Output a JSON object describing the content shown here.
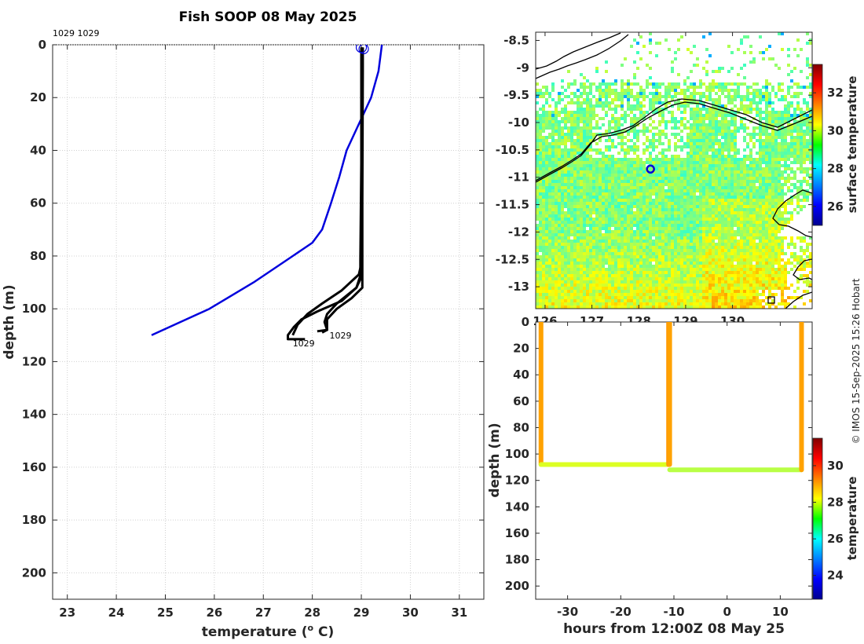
{
  "page": {
    "title": "Fish SOOP 08 May 2025",
    "credit": "© IMOS 15-Sep-2025 15:26 Hobart"
  },
  "chart_data": [
    {
      "type": "line",
      "name": "profile",
      "xlabel": "temperature (° C)",
      "xlabel_main": "temperature (",
      "xlabel_sup": "o",
      "xlabel_end": " C)",
      "ylabel": "depth (m)",
      "xlim": [
        22.7,
        31.5
      ],
      "ylim": [
        0,
        210
      ],
      "y_reversed": true,
      "grid": true,
      "xticks": [
        "23",
        "24",
        "25",
        "26",
        "27",
        "28",
        "29",
        "30",
        "31"
      ],
      "yticks": [
        "0",
        "20",
        "40",
        "60",
        "80",
        "100",
        "120",
        "140",
        "160",
        "180",
        "200"
      ],
      "top_annotation": "1029 1029",
      "annotations": [
        {
          "text": "1029",
          "x": 28.35,
          "y": 110
        },
        {
          "text": "1029",
          "x": 27.6,
          "y": 113
        }
      ],
      "series": [
        {
          "color": "#0000dd",
          "x": [
            29.42,
            29.35,
            29.2,
            28.95,
            28.7,
            28.55,
            28.38,
            28.2,
            28.0,
            27.6,
            26.8,
            25.9,
            24.72
          ],
          "y": [
            0,
            10,
            20,
            30,
            40,
            50,
            60,
            70,
            75,
            80,
            90,
            100,
            110
          ]
        },
        {
          "color": "#000000",
          "x": [
            29.0,
            29.0,
            29.0,
            28.98,
            28.98,
            28.97,
            28.9,
            28.6,
            28.1,
            27.78,
            27.62,
            27.5,
            27.5,
            27.85
          ],
          "y": [
            1,
            10,
            45,
            82,
            86,
            88,
            92,
            97,
            101,
            104,
            107,
            110,
            111.5,
            111.5
          ]
        },
        {
          "color": "#000000",
          "x": [
            29.0,
            29.0,
            29.0,
            29.0,
            28.95,
            28.6,
            28.2,
            27.9,
            27.7,
            27.6
          ],
          "y": [
            1,
            10,
            60,
            83,
            87,
            93,
            98,
            102,
            106,
            110
          ]
        },
        {
          "color": "#000000",
          "x": [
            29.02,
            29.02,
            29.01,
            29.0,
            28.9,
            28.5,
            28.3,
            28.25,
            28.3,
            28.2
          ],
          "y": [
            1,
            10,
            60,
            88,
            92,
            98,
            102,
            105,
            108,
            109
          ]
        },
        {
          "color": "#000000",
          "x": [
            29.03,
            29.03,
            29.02,
            29.02,
            28.8,
            28.5,
            28.3,
            28.3,
            28.1
          ],
          "y": [
            1,
            10,
            60,
            92,
            96,
            100,
            104,
            108,
            108.5
          ]
        }
      ],
      "marker": {
        "x": 29.0,
        "y": 1
      }
    },
    {
      "type": "heatmap",
      "name": "surface temperature map",
      "colorbar_label": "surface temperature",
      "xlim": [
        125.8,
        131.7
      ],
      "ylim": [
        -13.4,
        -8.35
      ],
      "xticks": [
        "126",
        "127",
        "128",
        "129",
        "130"
      ],
      "yticks": [
        "-8.5",
        "-9",
        "-9.5",
        "-10",
        "-10.5",
        "-11",
        "-11.5",
        "-12",
        "-12.5",
        "-13"
      ],
      "colorbar_range": [
        25,
        33.5
      ],
      "colorbar_ticks": [
        "26",
        "28",
        "30",
        "32"
      ],
      "vessel_position": {
        "lon": 128.25,
        "lat": -10.85
      }
    },
    {
      "type": "scatter",
      "name": "depth time section",
      "xlabel": "hours from 12:00Z 08 May 25",
      "ylabel": "depth (m)",
      "colorbar_label": "temperature",
      "xlim": [
        -36,
        16
      ],
      "ylim": [
        0,
        210
      ],
      "y_reversed": true,
      "xticks": [
        "-30",
        "-20",
        "-10",
        "0",
        "10"
      ],
      "yticks": [
        "0",
        "20",
        "40",
        "60",
        "80",
        "100",
        "120",
        "140",
        "160",
        "180",
        "200"
      ],
      "colorbar_range": [
        22.7,
        31.5
      ],
      "colorbar_ticks": [
        "24",
        "26",
        "28",
        "30"
      ],
      "segments": [
        {
          "x": [
            -35.0,
            -35.0
          ],
          "y": [
            0,
            108
          ],
          "temp": 29.0
        },
        {
          "x": [
            -35.0,
            -11.0
          ],
          "y": [
            108,
            108
          ],
          "temp": 27.9
        },
        {
          "x": [
            -11.0,
            -11.0
          ],
          "y": [
            0,
            108
          ],
          "temp": 29.1
        },
        {
          "x": [
            -10.8,
            -10.8
          ],
          "y": [
            0,
            108
          ],
          "temp": 29.0
        },
        {
          "x": [
            -10.8,
            14.0
          ],
          "y": [
            112,
            112
          ],
          "temp": 27.6
        },
        {
          "x": [
            14.0,
            14.0
          ],
          "y": [
            0,
            112
          ],
          "temp": 29.0
        }
      ]
    }
  ]
}
